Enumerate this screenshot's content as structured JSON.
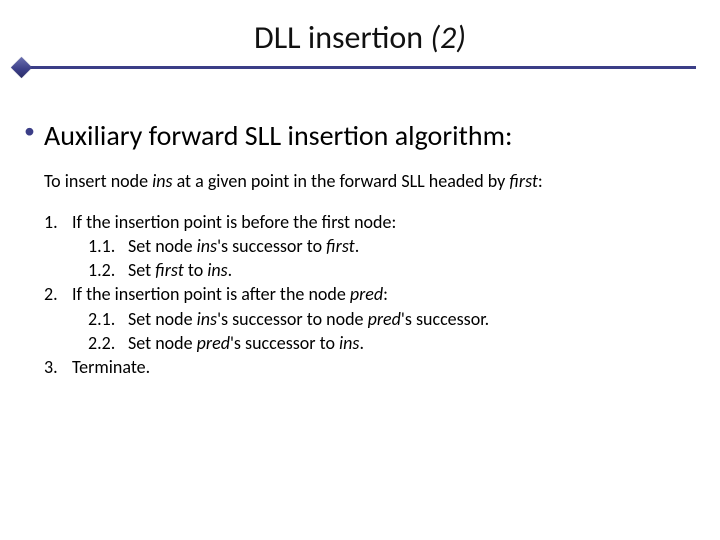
{
  "colors": {
    "accent": "#3b3e87",
    "text": "#000000",
    "background": "#ffffff"
  },
  "typography": {
    "title_fontsize": 32,
    "lvl1_fontsize": 28,
    "body_fontsize": 18,
    "family": "Calibri"
  },
  "title": {
    "main": "DLL insertion ",
    "ordinal": "(2)"
  },
  "bullet": {
    "text": "Auxiliary forward SLL insertion algorithm:"
  },
  "intro": {
    "prefix": "To insert node ",
    "ins": "ins",
    "mid": " at a given point in the forward SLL headed by ",
    "first": "first",
    "suffix": ":"
  },
  "steps": {
    "s1": {
      "num": "1.",
      "text": "If the insertion point is before the first node:",
      "s11": {
        "num": "1.1.",
        "a": "Set node ",
        "b": "ins",
        "c": "'s successor to ",
        "d": "first",
        "e": "."
      },
      "s12": {
        "num": "1.2.",
        "a": "Set ",
        "b": "first",
        "c": " to ",
        "d": "ins",
        "e": "."
      }
    },
    "s2": {
      "num": "2.",
      "a": "If the insertion point is after the node ",
      "b": "pred",
      "c": ":",
      "s21": {
        "num": "2.1.",
        "a": "Set node ",
        "b": "ins",
        "c": "'s successor to node ",
        "d": "pred",
        "e": "'s successor."
      },
      "s22": {
        "num": "2.2.",
        "a": "Set node ",
        "b": "pred",
        "c": "'s successor to ",
        "d": "ins",
        "e": "."
      }
    },
    "s3": {
      "num": "3.",
      "text": "Terminate."
    }
  }
}
